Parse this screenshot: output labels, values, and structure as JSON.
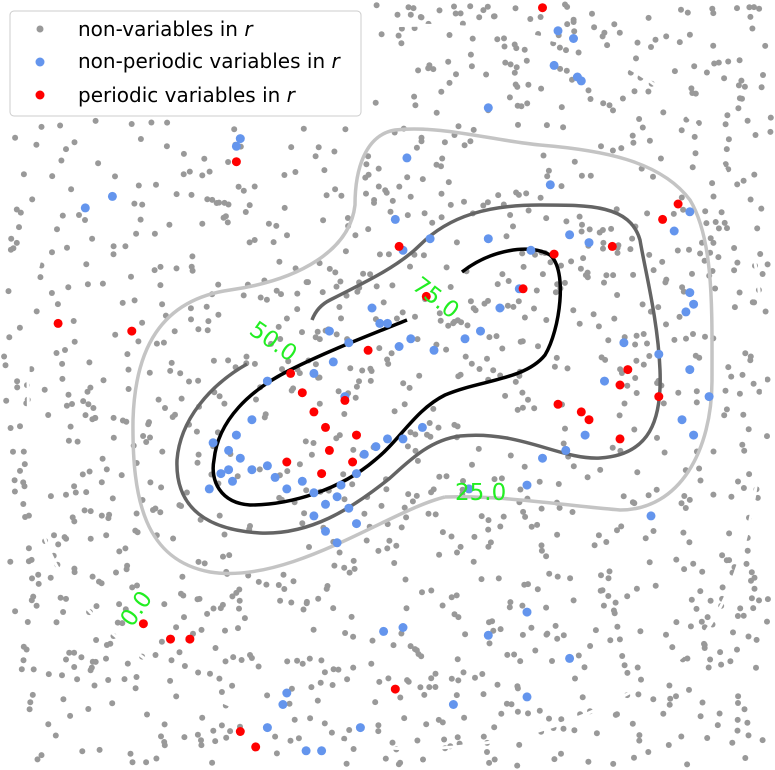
{
  "chart_data": {
    "type": "scatter",
    "title": "",
    "xlabel": "",
    "ylabel": "",
    "axes_visible": false,
    "xlim": [
      0,
      10
    ],
    "ylim": [
      0,
      10
    ],
    "legend": {
      "placement": "top-left",
      "entries": [
        {
          "key": "non",
          "prefix": "non-variables in ",
          "suffix": "r"
        },
        {
          "key": "npv",
          "prefix": "non-periodic variables in ",
          "suffix": "r"
        },
        {
          "key": "pv",
          "prefix": "periodic variables in ",
          "suffix": "r"
        }
      ]
    },
    "colors": {
      "non": "#999999",
      "npv": "#6495ed",
      "pv": "#ff0000"
    },
    "contours": [
      {
        "level": 0.0,
        "label": "0.0",
        "color": "#ffffff"
      },
      {
        "level": 25.0,
        "label": "25.0",
        "color": "#c4c4c4"
      },
      {
        "level": 50.0,
        "label": "50.0",
        "color": "#646464"
      },
      {
        "level": 75.0,
        "label": "75.0",
        "color": "#000000"
      }
    ],
    "series": [
      {
        "key": "pv",
        "points": [
          [
            7.0,
            9.9
          ],
          [
            3.05,
            7.9
          ],
          [
            0.75,
            5.8
          ],
          [
            1.7,
            5.7
          ],
          [
            8.75,
            7.35
          ],
          [
            8.55,
            7.15
          ],
          [
            7.9,
            6.8
          ],
          [
            7.15,
            6.7
          ],
          [
            5.15,
            6.8
          ],
          [
            6.75,
            6.25
          ],
          [
            5.5,
            6.15
          ],
          [
            4.75,
            5.45
          ],
          [
            3.75,
            5.15
          ],
          [
            3.9,
            4.9
          ],
          [
            4.45,
            4.8
          ],
          [
            4.05,
            4.65
          ],
          [
            4.2,
            4.45
          ],
          [
            4.6,
            4.35
          ],
          [
            4.25,
            4.15
          ],
          [
            3.7,
            4.0
          ],
          [
            4.55,
            4.0
          ],
          [
            4.15,
            3.85
          ],
          [
            8.1,
            5.2
          ],
          [
            8.0,
            5.0
          ],
          [
            7.2,
            4.75
          ],
          [
            7.5,
            4.65
          ],
          [
            7.6,
            4.55
          ],
          [
            8.5,
            4.85
          ],
          [
            8.0,
            4.3
          ],
          [
            1.85,
            1.9
          ],
          [
            2.2,
            1.7
          ],
          [
            2.45,
            1.7
          ],
          [
            5.1,
            1.05
          ],
          [
            3.1,
            0.5
          ],
          [
            3.3,
            0.3
          ]
        ]
      },
      {
        "key": "npv",
        "points": [
          [
            7.2,
            9.6
          ],
          [
            7.4,
            9.5
          ],
          [
            7.15,
            9.15
          ],
          [
            7.45,
            9.0
          ],
          [
            7.5,
            8.95
          ],
          [
            6.3,
            8.6
          ],
          [
            3.1,
            8.2
          ],
          [
            3.05,
            8.1
          ],
          [
            5.25,
            7.95
          ],
          [
            7.1,
            7.6
          ],
          [
            1.1,
            7.3
          ],
          [
            1.45,
            7.45
          ],
          [
            8.9,
            7.25
          ],
          [
            8.7,
            7.0
          ],
          [
            5.1,
            7.15
          ],
          [
            5.55,
            6.9
          ],
          [
            5.2,
            6.75
          ],
          [
            6.85,
            6.75
          ],
          [
            7.35,
            6.95
          ],
          [
            7.6,
            6.85
          ],
          [
            6.3,
            6.9
          ],
          [
            4.8,
            6.0
          ],
          [
            5.0,
            5.8
          ],
          [
            5.3,
            5.6
          ],
          [
            5.6,
            5.45
          ],
          [
            6.0,
            5.6
          ],
          [
            6.2,
            5.7
          ],
          [
            6.45,
            6.0
          ],
          [
            6.7,
            6.25
          ],
          [
            4.25,
            5.7
          ],
          [
            4.5,
            5.55
          ],
          [
            4.9,
            5.8
          ],
          [
            5.15,
            5.5
          ],
          [
            4.05,
            5.15
          ],
          [
            4.3,
            5.3
          ],
          [
            4.45,
            4.85
          ],
          [
            3.45,
            5.05
          ],
          [
            3.25,
            4.55
          ],
          [
            3.05,
            4.35
          ],
          [
            2.95,
            4.15
          ],
          [
            3.1,
            4.05
          ],
          [
            3.25,
            3.9
          ],
          [
            3.45,
            3.95
          ],
          [
            3.55,
            3.8
          ],
          [
            3.7,
            3.65
          ],
          [
            3.9,
            3.75
          ],
          [
            4.05,
            3.6
          ],
          [
            4.2,
            3.45
          ],
          [
            4.4,
            3.7
          ],
          [
            4.6,
            3.85
          ],
          [
            4.7,
            4.1
          ],
          [
            4.85,
            4.2
          ],
          [
            5.0,
            4.3
          ],
          [
            5.2,
            4.3
          ],
          [
            5.45,
            4.45
          ],
          [
            4.35,
            3.55
          ],
          [
            4.5,
            3.4
          ],
          [
            2.75,
            4.25
          ],
          [
            2.85,
            3.85
          ],
          [
            3.0,
            3.75
          ],
          [
            2.7,
            3.65
          ],
          [
            4.05,
            3.3
          ],
          [
            4.2,
            3.1
          ],
          [
            4.35,
            2.95
          ],
          [
            4.6,
            3.2
          ],
          [
            2.95,
            3.9
          ],
          [
            6.05,
            3.65
          ],
          [
            6.8,
            3.7
          ],
          [
            7.0,
            4.05
          ],
          [
            7.3,
            4.15
          ],
          [
            7.55,
            4.35
          ],
          [
            7.8,
            5.05
          ],
          [
            8.05,
            5.55
          ],
          [
            8.5,
            5.4
          ],
          [
            8.85,
            5.95
          ],
          [
            8.9,
            6.2
          ],
          [
            8.95,
            6.05
          ],
          [
            9.15,
            4.85
          ],
          [
            8.8,
            4.55
          ],
          [
            8.95,
            4.35
          ],
          [
            8.9,
            5.2
          ],
          [
            8.4,
            3.3
          ],
          [
            6.8,
            2.05
          ],
          [
            4.95,
            1.8
          ],
          [
            5.2,
            1.85
          ],
          [
            6.3,
            1.75
          ],
          [
            7.35,
            1.45
          ],
          [
            3.7,
            1.0
          ],
          [
            3.65,
            0.85
          ],
          [
            3.45,
            0.55
          ],
          [
            3.95,
            0.25
          ],
          [
            4.15,
            0.25
          ],
          [
            4.65,
            0.55
          ],
          [
            5.85,
            0.85
          ],
          [
            6.8,
            0.95
          ]
        ]
      },
      {
        "key": "non",
        "cloud": true
      }
    ]
  }
}
